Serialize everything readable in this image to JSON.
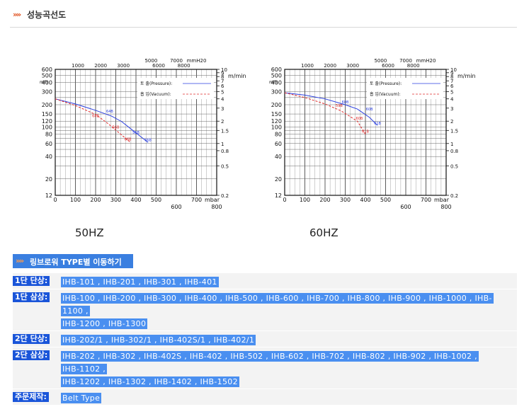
{
  "header": {
    "arrows": "»»",
    "title": "성능곡선도"
  },
  "legend": {
    "pressure": "토 출(Pressure):",
    "vacuum": "흡 입(Vacuum):"
  },
  "axes": {
    "left_unit": "m/h",
    "right_unit": "m/min",
    "top_unit": "mmH2O",
    "bottom_unit": "mbar",
    "left_ticks": [
      "600",
      "500",
      "400",
      "300",
      "200",
      "150",
      "120",
      "100",
      "80",
      "60",
      "40",
      "20",
      "12"
    ],
    "right_ticks": [
      "10",
      "9",
      "8",
      "7",
      "6",
      "5",
      "4",
      "3",
      "2",
      "1.5",
      "1",
      "0.8",
      "0.5",
      "0.2"
    ],
    "top_ticks_row1": [
      "5000",
      "7000",
      "mmH20"
    ],
    "top_ticks_row2": [
      "1000",
      "2000",
      "3000",
      "6000",
      "8000"
    ],
    "bottom_ticks_row1": [
      "0",
      "100",
      "200",
      "300",
      "400",
      "500",
      "700",
      "mbar"
    ],
    "bottom_ticks_row2": [
      "600",
      "800"
    ]
  },
  "chart_data": [
    {
      "type": "line",
      "title": "50HZ",
      "xlabel": "mbar",
      "ylabel": "m/h",
      "y_scale": "log",
      "xlim": [
        0,
        800
      ],
      "ylim": [
        12,
        600
      ],
      "grid": true,
      "legend_position": "top-right",
      "series": [
        {
          "name": "토 출(Pressure)",
          "color": "#2a3fe0",
          "x": [
            0,
            100,
            200,
            280,
            330,
            380,
            430,
            460
          ],
          "y": [
            240,
            205,
            168,
            140,
            118,
            92,
            72,
            62
          ],
          "labels": [
            {
              "text": "64B",
              "x": 270,
              "y": 150
            },
            {
              "text": "56B",
              "x": 400,
              "y": 78
            },
            {
              "text": "66B",
              "x": 460,
              "y": 62
            }
          ]
        },
        {
          "name": "흡 입(Vacuum)",
          "color": "#e02a2a",
          "x": [
            0,
            100,
            200,
            260,
            320,
            370
          ],
          "y": [
            240,
            195,
            148,
            112,
            82,
            63
          ],
          "labels": [
            {
              "text": "64B",
              "x": 200,
              "y": 130
            },
            {
              "text": "56B",
              "x": 300,
              "y": 92
            },
            {
              "text": "66B",
              "x": 360,
              "y": 63
            }
          ]
        }
      ]
    },
    {
      "type": "line",
      "title": "60HZ",
      "xlabel": "mbar",
      "ylabel": "m/h",
      "y_scale": "log",
      "xlim": [
        0,
        800
      ],
      "ylim": [
        12,
        600
      ],
      "grid": true,
      "legend_position": "top-right",
      "series": [
        {
          "name": "토 출(Pressure)",
          "color": "#2a3fe0",
          "x": [
            0,
            100,
            200,
            300,
            360,
            420,
            460
          ],
          "y": [
            290,
            270,
            240,
            200,
            175,
            135,
            105
          ],
          "labels": [
            {
              "text": "60B",
              "x": 300,
              "y": 200
            },
            {
              "text": "60B",
              "x": 420,
              "y": 160
            },
            {
              "text": "61B",
              "x": 460,
              "y": 103
            }
          ]
        },
        {
          "name": "흡 입(Vacuum)",
          "color": "#e02a2a",
          "x": [
            0,
            100,
            200,
            280,
            360,
            400
          ],
          "y": [
            290,
            250,
            205,
            165,
            120,
            80
          ],
          "labels": [
            {
              "text": "59B",
              "x": 270,
              "y": 180
            },
            {
              "text": "60B",
              "x": 370,
              "y": 120
            },
            {
              "text": "61B",
              "x": 400,
              "y": 80
            }
          ]
        }
      ]
    }
  ],
  "hz_labels": [
    "50HZ",
    "60HZ"
  ],
  "nav": {
    "arrows": "»»",
    "label": "링브로워 TYPE별 이동하기"
  },
  "rows": [
    {
      "label": "1단 단상:",
      "lines": [
        "IHB-101 , IHB-201 , IHB-301 , IHB-401"
      ]
    },
    {
      "label": "1단 삼상:",
      "lines": [
        "IHB-100 , IHB-200 , IHB-300 , IHB-400 , IHB-500 , IHB-600 , IHB-700 , IHB-800 , IHB-900 , IHB-1000 , IHB-",
        "1100 ,",
        "IHB-1200 , IHB-1300"
      ]
    },
    {
      "label": "2단 단상:",
      "lines": [
        "IHB-202/1 , IHB-302/1 , IHB-402S/1 , IHB-402/1"
      ]
    },
    {
      "label": "2단 삼상:",
      "lines": [
        "IHB-202 , IHB-302 , IHB-402S , IHB-402 , IHB-502 , IHB-602 , IHB-702 , IHB-802 , IHB-902 , IHB-1002 ,",
        "IHB-1102 ,",
        "IHB-1202 , IHB-1302 , IHB-1402 , IHB-1502"
      ]
    },
    {
      "label": "주문제작:",
      "lines": [
        "Belt Type"
      ]
    }
  ]
}
